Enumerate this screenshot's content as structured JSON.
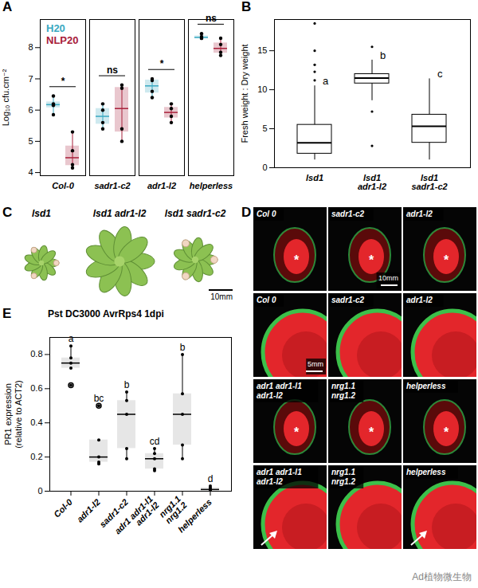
{
  "chart_data": [
    {
      "panel": "A",
      "type": "box",
      "y_label": "Log₁₀ cfu.cm⁻²",
      "categories": [
        "Col-0",
        "sadr1-c2",
        "adr1-l2",
        "helperless"
      ],
      "series": [
        {
          "name": "H20",
          "color": "#3aa9c1",
          "values": [
            [
              6.45,
              6.2,
              6.15,
              5.85
            ],
            [
              6.2,
              6.0,
              5.6,
              5.4
            ],
            [
              7.0,
              6.95,
              6.6,
              6.4
            ],
            [
              8.45,
              8.35,
              8.3,
              8.3
            ]
          ]
        },
        {
          "name": "NLP20",
          "color": "#a8203a",
          "values": [
            [
              5.3,
              4.7,
              4.25,
              4.15
            ],
            [
              6.8,
              6.7,
              5.4,
              5.0
            ],
            [
              6.2,
              6.05,
              5.8,
              5.6
            ],
            [
              8.3,
              8.1,
              7.85,
              7.75
            ]
          ]
        }
      ],
      "annotations": [
        "*",
        "ns",
        "*",
        "ns"
      ],
      "ylim": [
        3.9,
        8.9
      ],
      "yticks": [
        4,
        5,
        6,
        7,
        8
      ],
      "legend": "top-left"
    },
    {
      "panel": "B",
      "type": "box",
      "y_label": "Fresh weight : Dry weight",
      "categories": [
        "lsd1",
        "lsd1 adr1-l2",
        "lsd1 sadr1-c2"
      ],
      "whisker_low": [
        1.0,
        8.6,
        1.0
      ],
      "q1": [
        1.8,
        10.8,
        3.2
      ],
      "median": [
        3.2,
        11.5,
        5.3
      ],
      "q3": [
        5.5,
        12.0,
        6.8
      ],
      "whisker_high": [
        10.5,
        13.8,
        11.4
      ],
      "outliers": [
        [
          11.2,
          12.3,
          13.2,
          15.0,
          18.5
        ],
        [
          2.8,
          7.2,
          15.5
        ],
        []
      ],
      "annotations": [
        "a",
        "b",
        "c"
      ],
      "ylim": [
        0,
        19
      ],
      "yticks": [
        0,
        5,
        10,
        15
      ]
    },
    {
      "panel": "E",
      "type": "box",
      "title": "Pst DC3000 AvrRps4 1dpi",
      "y_label": "PR1 expression (relative to ACT2)",
      "categories": [
        "Col-0",
        "adr1-l2",
        "sadr1-c2",
        "adr1 adr1-l1 adr1-l2",
        "nrg1.1 nrg1.2",
        "helperless"
      ],
      "values": [
        [
          0.85,
          0.78,
          0.75,
          0.72,
          0.62
        ],
        [
          0.5,
          0.3,
          0.2,
          0.17,
          0.16
        ],
        [
          0.58,
          0.53,
          0.45,
          0.25,
          0.19
        ],
        [
          0.25,
          0.22,
          0.19,
          0.13,
          0.12
        ],
        [
          0.8,
          0.57,
          0.45,
          0.27,
          0.19
        ],
        [
          0.03,
          0.02,
          0.01,
          0.005,
          0.0
        ]
      ],
      "annotations": [
        "a",
        "bc",
        "b",
        "cd",
        "b",
        "d"
      ],
      "ylim": [
        0,
        0.9
      ],
      "yticks": [
        0,
        0.2,
        0.4,
        0.6,
        0.8
      ]
    }
  ],
  "panels": [
    {
      "panel": "C",
      "labels": [
        "lsd1",
        "lsd1 adr1-l2",
        "lsd1 sadr1-c2"
      ],
      "scale_bar": "10mm"
    },
    {
      "panel": "D",
      "tiles": [
        [
          {
            "label": "Col 0",
            "note": "*"
          },
          {
            "label": "sadr1-c2",
            "note": "*",
            "scale_bar": "10mm"
          },
          {
            "label": "adr1-l2",
            "note": "*"
          }
        ],
        [
          {
            "label": "Col 0",
            "scale_bar": "5mm"
          },
          {
            "label": "sadr1-c2"
          },
          {
            "label": "adr1-l2"
          }
        ],
        [
          {
            "label": "adr1 adr1-l1 adr1-l2",
            "note": "*"
          },
          {
            "label": "nrg1.1 nrg1.2",
            "note": "*"
          },
          {
            "label": "helperless",
            "note": "*"
          }
        ],
        [
          {
            "label": "adr1 adr1-l1 adr1-l2",
            "arrow": true
          },
          {
            "label": "nrg1.1 nrg1.2"
          },
          {
            "label": "helperless",
            "arrow": true
          }
        ]
      ]
    }
  ],
  "watermark": "Ad植物微生物"
}
